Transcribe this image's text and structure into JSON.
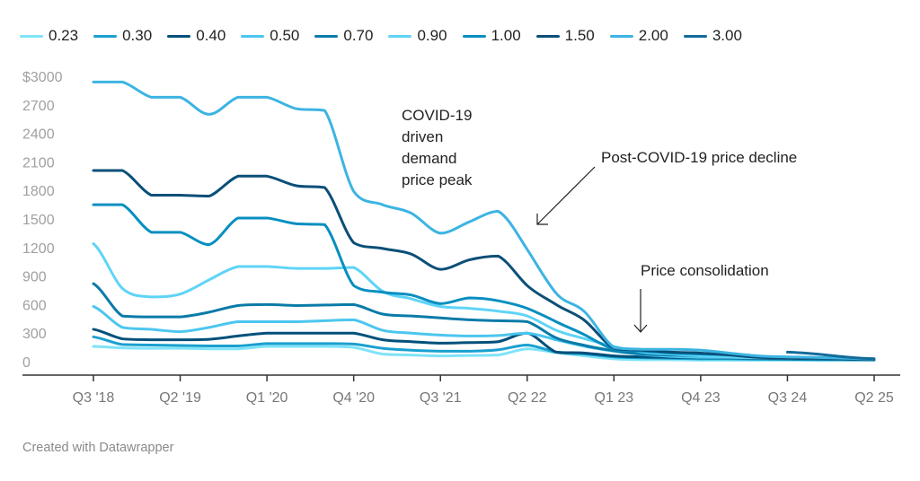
{
  "footer": "Created with Datawrapper",
  "annotations": [
    {
      "name": "covid-peak-annotation",
      "lines": [
        "COVID-19",
        "driven",
        "demand",
        "price peak"
      ]
    },
    {
      "name": "post-covid-decline-annotation",
      "lines": [
        "Post-COVID-19 price decline"
      ]
    },
    {
      "name": "price-consolidation-annotation",
      "lines": [
        "Price consolidation"
      ]
    }
  ],
  "chart_data": {
    "type": "line",
    "title": "",
    "xlabel": "",
    "ylabel": "",
    "y_prefix": "$",
    "ylim": [
      0,
      3000
    ],
    "yticks": [
      0,
      300,
      600,
      900,
      1200,
      1500,
      1800,
      2100,
      2400,
      2700,
      3000
    ],
    "ytick_labels": [
      "0",
      "300",
      "600",
      "900",
      "1200",
      "1500",
      "1800",
      "2100",
      "2400",
      "2700",
      "$3000"
    ],
    "x": [
      "Q3 '18",
      "Q4 '18",
      "Q1 '19",
      "Q2 '19",
      "Q3 '19",
      "Q4 '19",
      "Q1 '20",
      "Q2 '20",
      "Q3 '20",
      "Q4 '20",
      "Q1 '21",
      "Q2 '21",
      "Q3 '21",
      "Q4 '21",
      "Q1 '22",
      "Q2 22",
      "Q3 22",
      "Q4 22",
      "Q1 23",
      "Q2 23",
      "Q3 23",
      "Q4 23",
      "Q1 24",
      "Q2 24",
      "Q3 24",
      "Q4 24",
      "Q1 25",
      "Q2 25"
    ],
    "xtick_labels": [
      "Q3 '18",
      "Q2 '19",
      "Q1 '20",
      "Q4 '20",
      "Q3 '21",
      "Q2 22",
      "Q1 23",
      "Q4 23",
      "Q3 24",
      "Q2 25"
    ],
    "legend_position": "top-left",
    "grid": false,
    "series": [
      {
        "name": "0.23",
        "color": "#7fe3f8",
        "values": [
          160,
          145,
          140,
          140,
          135,
          135,
          160,
          160,
          160,
          150,
          80,
          70,
          60,
          65,
          70,
          135,
          95,
          60,
          30,
          20,
          20,
          15,
          15,
          15,
          15,
          15,
          15,
          15
        ]
      },
      {
        "name": "0.30",
        "color": "#1aa0cf",
        "values": [
          260,
          180,
          175,
          170,
          165,
          165,
          190,
          190,
          190,
          185,
          140,
          120,
          110,
          110,
          125,
          175,
          100,
          80,
          50,
          40,
          35,
          30,
          30,
          25,
          25,
          20,
          20,
          20
        ]
      },
      {
        "name": "0.40",
        "color": "#00507a",
        "values": [
          340,
          240,
          230,
          230,
          235,
          270,
          300,
          300,
          300,
          300,
          230,
          210,
          195,
          200,
          210,
          300,
          100,
          90,
          60,
          50,
          45,
          40,
          40,
          35,
          30,
          30,
          25,
          20
        ]
      },
      {
        "name": "0.50",
        "color": "#4cc6ef",
        "values": [
          580,
          360,
          340,
          315,
          360,
          420,
          420,
          420,
          430,
          440,
          330,
          300,
          280,
          270,
          275,
          300,
          230,
          160,
          110,
          75,
          55,
          45,
          45,
          40,
          40,
          35,
          30,
          25
        ]
      },
      {
        "name": "0.70",
        "color": "#0a7ba8",
        "values": [
          820,
          480,
          470,
          470,
          520,
          590,
          600,
          590,
          595,
          600,
          500,
          480,
          460,
          440,
          430,
          420,
          250,
          170,
          115,
          80,
          70,
          60,
          55,
          50,
          45,
          40,
          35,
          30
        ]
      },
      {
        "name": "0.90",
        "color": "#5fd4f7",
        "values": [
          1240,
          770,
          680,
          710,
          860,
          1000,
          1000,
          980,
          980,
          990,
          740,
          660,
          580,
          560,
          530,
          480,
          330,
          240,
          160,
          100,
          80,
          60,
          50,
          45,
          45,
          40,
          35,
          30
        ]
      },
      {
        "name": "1.00",
        "color": "#078fc0",
        "values": [
          1650,
          1650,
          1360,
          1360,
          1230,
          1510,
          1510,
          1450,
          1440,
          800,
          730,
          700,
          610,
          670,
          640,
          560,
          420,
          280,
          130,
          110,
          90,
          80,
          70,
          50,
          45,
          40,
          35,
          30
        ]
      },
      {
        "name": "1.50",
        "color": "#0b4f78",
        "values": [
          2010,
          2010,
          1750,
          1750,
          1740,
          1950,
          1950,
          1850,
          1830,
          1250,
          1190,
          1130,
          970,
          1070,
          1110,
          800,
          600,
          430,
          140,
          120,
          100,
          90,
          70,
          45,
          40,
          35,
          30,
          25
        ]
      },
      {
        "name": "2.00",
        "color": "#3cb4e2",
        "values": [
          2940,
          2940,
          2780,
          2780,
          2600,
          2780,
          2780,
          2660,
          2640,
          1790,
          1650,
          1560,
          1350,
          1470,
          1580,
          1180,
          720,
          520,
          150,
          130,
          130,
          120,
          90,
          60,
          50,
          45,
          35,
          30
        ]
      },
      {
        "name": "3.00",
        "color": "#136c9a",
        "values": [
          null,
          null,
          null,
          null,
          null,
          null,
          null,
          null,
          null,
          null,
          null,
          null,
          null,
          null,
          null,
          null,
          null,
          null,
          null,
          null,
          null,
          null,
          null,
          null,
          100,
          80,
          50,
          30
        ]
      }
    ]
  }
}
